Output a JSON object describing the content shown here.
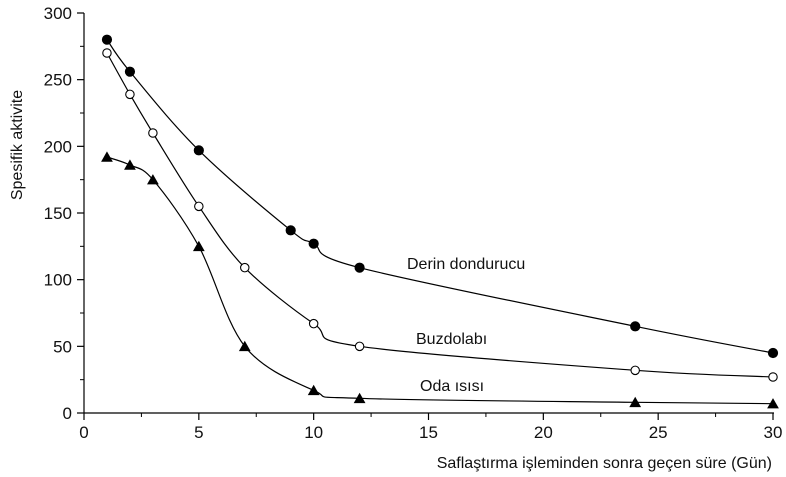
{
  "chart_data": {
    "type": "line",
    "title": "",
    "xlabel": "Saflaştırma işleminden sonra geçen süre (Gün)",
    "ylabel": "Spesifik aktivite",
    "xlim": [
      0,
      30
    ],
    "ylim": [
      0,
      300
    ],
    "xticks": [
      0,
      5,
      10,
      15,
      20,
      25,
      30
    ],
    "yticks": [
      0,
      50,
      100,
      150,
      200,
      250,
      300
    ],
    "grid": false,
    "legend": "none (series labelled inline next to curves)",
    "series": [
      {
        "name": "Derin dondurucu",
        "marker": "filled-circle",
        "color": "#000000",
        "x": [
          1,
          2,
          5,
          9,
          10,
          12,
          24,
          30
        ],
        "y": [
          280,
          256,
          197,
          137,
          127,
          109,
          65,
          45
        ]
      },
      {
        "name": "Buzdolabı",
        "marker": "open-circle",
        "color": "#000000",
        "x": [
          1,
          2,
          3,
          5,
          7,
          10,
          12,
          24,
          30
        ],
        "y": [
          270,
          239,
          210,
          155,
          109,
          67,
          50,
          32,
          27
        ]
      },
      {
        "name": "Oda ısısı",
        "marker": "filled-triangle",
        "color": "#000000",
        "x": [
          1,
          2,
          3,
          5,
          7,
          10,
          12,
          24,
          30
        ],
        "y": [
          192,
          186,
          175,
          125,
          50,
          17,
          11,
          8,
          7
        ]
      }
    ]
  }
}
